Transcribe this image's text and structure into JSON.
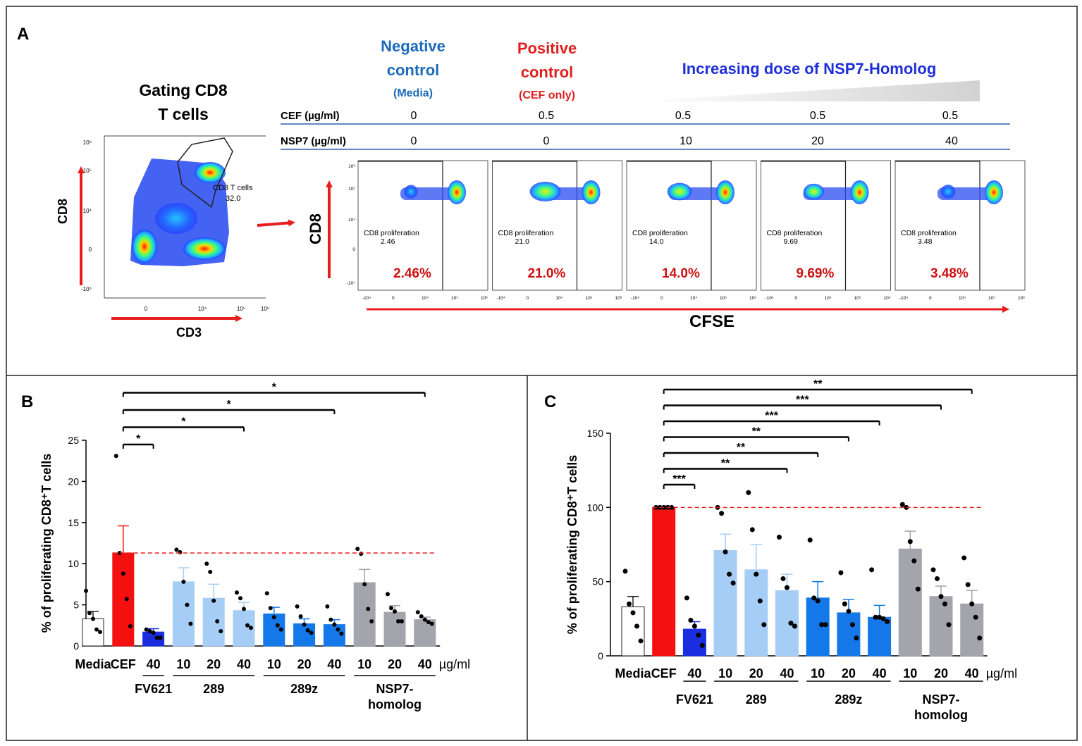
{
  "panel_a": {
    "label": "A",
    "gating_title_line1": "Gating CD8",
    "gating_title_line2": "T cells",
    "gate_label": "CD8 T cells",
    "gate_value": "32.0",
    "gating_xlabel": "CD3",
    "gating_ylabel": "CD8",
    "gating_xticks": [
      "0",
      "10⁴",
      "10⁵",
      "10⁶"
    ],
    "gating_yticks": [
      "10⁶",
      "10⁵",
      "10⁴",
      "0",
      "-10⁴"
    ],
    "neg_line1": "Negative",
    "neg_line2": "control",
    "neg_line3": "(Media)",
    "pos_line1": "Positive",
    "pos_line2": "control",
    "pos_line3": "(CEF only)",
    "increasing_label": "Increasing dose of NSP7-Homolog",
    "cef_row_label": "CEF (µg/ml)",
    "nsp7_row_label": "NSP7 (µg/ml)",
    "cef_values": [
      "0",
      "0.5",
      "0.5",
      "0.5",
      "0.5"
    ],
    "nsp7_values": [
      "0",
      "0",
      "10",
      "20",
      "40"
    ],
    "flow_ylabel": "CD8",
    "flow_xlabel": "CFSE",
    "flow_gate_label": "CD8 proliferation",
    "flow_gate_values": [
      "2.46",
      "21.0",
      "14.0",
      "9.69",
      "3.48"
    ],
    "flow_percent_labels": [
      "2.46%",
      "21.0%",
      "14.0%",
      "9.69%",
      "3.48%"
    ],
    "flow_yticks": [
      "10⁶",
      "10⁵",
      "10⁴",
      "0",
      "-10⁴"
    ],
    "flow_xticks": [
      "-10⁴",
      "0",
      "10⁴",
      "10⁵",
      "10⁶"
    ]
  },
  "chart_data": [
    {
      "type": "bar",
      "panel": "B",
      "ylabel": "% of proliferating CD8⁺T cells",
      "ylim": [
        0,
        25
      ],
      "yticks": [
        0,
        5,
        10,
        15,
        20,
        25
      ],
      "categories": [
        "Media",
        "CEF",
        "40",
        "10",
        "20",
        "40",
        "10",
        "20",
        "40",
        "10",
        "20",
        "40"
      ],
      "unit_label": "µg/ml",
      "group_labels": [
        {
          "lines": [
            "FV621"
          ],
          "from": 2,
          "to": 2
        },
        {
          "lines": [
            "289"
          ],
          "from": 3,
          "to": 5
        },
        {
          "lines": [
            "289z"
          ],
          "from": 6,
          "to": 8
        },
        {
          "lines": [
            "NSP7-",
            "homolog"
          ],
          "from": 9,
          "to": 11
        }
      ],
      "values": [
        3.3,
        11.3,
        1.7,
        7.8,
        5.8,
        4.3,
        3.9,
        2.7,
        2.6,
        7.7,
        4.1,
        3.2
      ],
      "errors": [
        0.9,
        3.3,
        0.4,
        1.7,
        1.7,
        1.0,
        0.8,
        0.6,
        0.6,
        1.6,
        0.8,
        0.3
      ],
      "points": [
        [
          6.7,
          4.0,
          3.3,
          2.0,
          1.7
        ],
        [
          23.1,
          11.3,
          8.8,
          5.7,
          2.4
        ],
        [
          2.0,
          1.8,
          1.6,
          1.0,
          1.0
        ],
        [
          11.7,
          11.4,
          7.8,
          5.0,
          2.7
        ],
        [
          10.0,
          9.0,
          5.5,
          3.0,
          1.8
        ],
        [
          6.5,
          5.8,
          4.5,
          2.5,
          2.2
        ],
        [
          6.4,
          4.6,
          3.5,
          2.5,
          2.0
        ],
        [
          4.8,
          3.6,
          2.6,
          1.9,
          1.6
        ],
        [
          4.8,
          3.2,
          2.6,
          2.0,
          1.5
        ],
        [
          11.8,
          11.2,
          7.5,
          4.5,
          3.0
        ],
        [
          6.3,
          4.6,
          4.2,
          3.0,
          3.0
        ],
        [
          4.1,
          3.6,
          3.2,
          2.9,
          2.7
        ]
      ],
      "colors": [
        "#ffffff",
        "#f51010",
        "#1a2ee0",
        "#a6cdf5",
        "#a6cdf5",
        "#a6cdf5",
        "#1578e8",
        "#1578e8",
        "#1578e8",
        "#a4a4ac",
        "#a4a4ac",
        "#a4a4ac"
      ],
      "reference_line": 11.3,
      "significance": [
        {
          "from": 1,
          "to": 2,
          "label": "*"
        },
        {
          "from": 1,
          "to": 5,
          "label": "*"
        },
        {
          "from": 1,
          "to": 8,
          "label": "*"
        },
        {
          "from": 1,
          "to": 11,
          "label": "*"
        }
      ]
    },
    {
      "type": "bar",
      "panel": "C",
      "ylabel": "% of proliferating CD8⁺T cells",
      "ylim": [
        0,
        150
      ],
      "yticks": [
        0,
        50,
        100,
        150
      ],
      "categories": [
        "Media",
        "CEF",
        "40",
        "10",
        "20",
        "40",
        "10",
        "20",
        "40",
        "10",
        "20",
        "40"
      ],
      "unit_label": "µg/ml",
      "group_labels": [
        {
          "lines": [
            "FV621"
          ],
          "from": 2,
          "to": 2
        },
        {
          "lines": [
            "289"
          ],
          "from": 3,
          "to": 5
        },
        {
          "lines": [
            "289z"
          ],
          "from": 6,
          "to": 8
        },
        {
          "lines": [
            "NSP7-",
            "homolog"
          ],
          "from": 9,
          "to": 11
        }
      ],
      "values": [
        33,
        100,
        18,
        71,
        58,
        44,
        39,
        29,
        26,
        72,
        40,
        35
      ],
      "errors": [
        7,
        0,
        5,
        11,
        17,
        11,
        11,
        9,
        8,
        12,
        7,
        9
      ],
      "points": [
        [
          57,
          35,
          29,
          20,
          10
        ],
        [
          100,
          100,
          100,
          100,
          100
        ],
        [
          39,
          24,
          20,
          14,
          7
        ],
        [
          100,
          96,
          70,
          55,
          49
        ],
        [
          110,
          85,
          55,
          37,
          21
        ],
        [
          80,
          52,
          46,
          22,
          20
        ],
        [
          78,
          39,
          37,
          21,
          21
        ],
        [
          56,
          35,
          30,
          21,
          12
        ],
        [
          58,
          26,
          26,
          25,
          23
        ],
        [
          102,
          100,
          77,
          64,
          45
        ],
        [
          58,
          52,
          40,
          35,
          21
        ],
        [
          66,
          48,
          35,
          26,
          12
        ]
      ],
      "colors": [
        "#ffffff",
        "#f51010",
        "#1a2ee0",
        "#a6cdf5",
        "#a6cdf5",
        "#a6cdf5",
        "#1578e8",
        "#1578e8",
        "#1578e8",
        "#a4a4ac",
        "#a4a4ac",
        "#a4a4ac"
      ],
      "reference_line": 100,
      "significance": [
        {
          "from": 1,
          "to": 2,
          "label": "***"
        },
        {
          "from": 1,
          "to": 5,
          "label": "**"
        },
        {
          "from": 1,
          "to": 6,
          "label": "**"
        },
        {
          "from": 1,
          "to": 7,
          "label": "**"
        },
        {
          "from": 1,
          "to": 8,
          "label": "***"
        },
        {
          "from": 1,
          "to": 10,
          "label": "***"
        },
        {
          "from": 1,
          "to": 11,
          "label": "**"
        }
      ]
    }
  ],
  "panel_b_label": "B",
  "panel_c_label": "C"
}
